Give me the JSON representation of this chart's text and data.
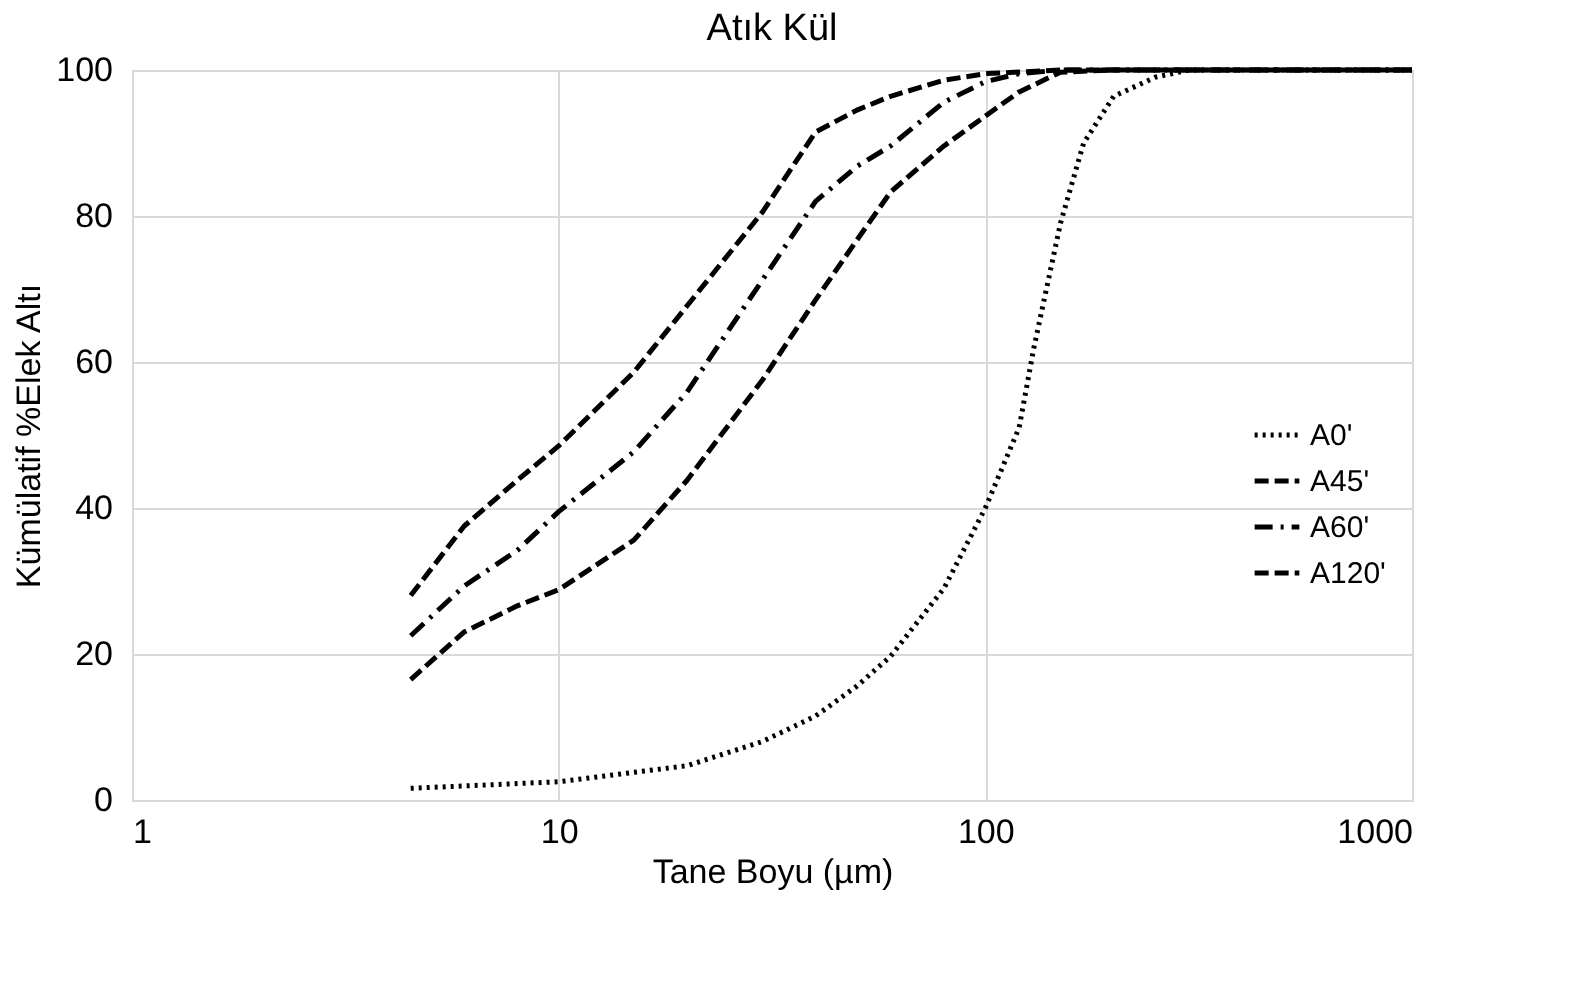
{
  "chart_data": {
    "type": "line",
    "title": "Atık Kül",
    "xlabel": "Tane Boyu (µm)",
    "ylabel": "Kümülatif %Elek Altı",
    "log": "x",
    "xlim": [
      1,
      1000
    ],
    "xticks": [
      1,
      10,
      100,
      1000
    ],
    "ylim": [
      0,
      100
    ],
    "yticks": [
      0,
      20,
      40,
      60,
      80,
      100
    ],
    "grid": true,
    "legend": "right",
    "marker": "none",
    "series": [
      {
        "name": "A0'",
        "color": "#000000",
        "line_style": "dotted",
        "x": [
          4.5,
          10,
          20,
          30,
          40,
          50,
          60,
          80,
          100,
          120,
          130,
          150,
          170,
          200,
          250,
          300,
          500,
          1000
        ],
        "values": [
          1.6,
          2.5,
          4.7,
          8,
          11.5,
          15.6,
          19.7,
          29,
          40,
          51,
          62,
          79,
          90,
          96.4,
          99,
          100,
          100,
          100
        ]
      },
      {
        "name": "A45'",
        "color": "#000000",
        "line_style": "dashed",
        "x": [
          4.5,
          6,
          8,
          10,
          15,
          20,
          30,
          40,
          50,
          60,
          80,
          100,
          120,
          150,
          200,
          500,
          1000
        ],
        "values": [
          16.5,
          23,
          26.6,
          28.8,
          35.6,
          43.8,
          57.5,
          68.5,
          76.7,
          83.3,
          89.6,
          93.7,
          97,
          99.7,
          100,
          100,
          100
        ]
      },
      {
        "name": "A60'",
        "color": "#000000",
        "line_style": "dashdot",
        "x": [
          4.5,
          6,
          8,
          10,
          15,
          20,
          30,
          40,
          50,
          60,
          80,
          100,
          120,
          150,
          500,
          1000
        ],
        "values": [
          22.5,
          29.3,
          34.2,
          39.5,
          47.7,
          55.9,
          71.2,
          82,
          86.8,
          89.6,
          95.6,
          98.4,
          99.5,
          100,
          100,
          100
        ]
      },
      {
        "name": "A120'",
        "color": "#000000",
        "line_style": "dashed",
        "x": [
          4.5,
          6,
          8,
          10,
          15,
          20,
          30,
          40,
          50,
          60,
          80,
          100,
          150,
          500,
          1000
        ],
        "values": [
          28,
          37.5,
          43.8,
          48.5,
          58.6,
          67.7,
          80.5,
          91.5,
          94.5,
          96.4,
          98.6,
          99.5,
          100,
          100,
          100
        ]
      }
    ]
  }
}
